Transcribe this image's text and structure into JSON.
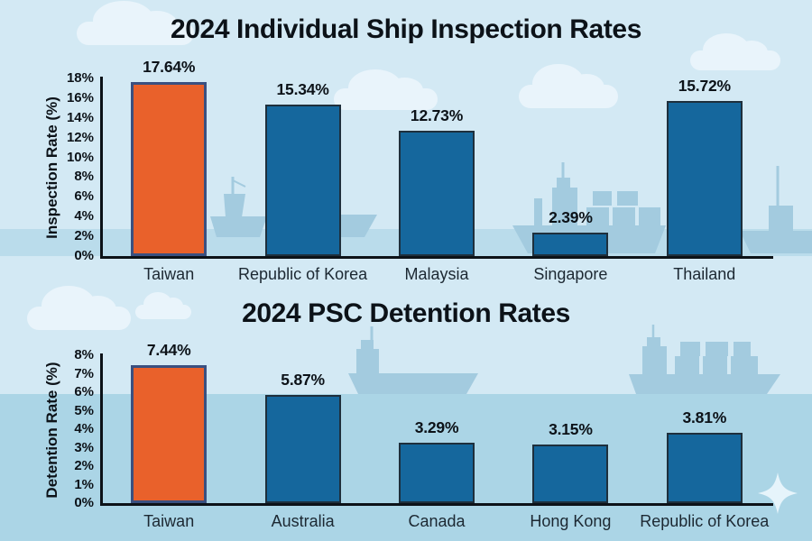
{
  "colors": {
    "sky": "#D3E9F4",
    "water_top": "#BADCEB",
    "water_bottom": "#ABD5E6",
    "bar_blue": "#15679D",
    "bar_orange": "#E9612B",
    "bar_border": "#1E2F3C",
    "hl_border": "#3A5080",
    "ink": "#0C1218",
    "ink_soft": "#1C2832",
    "ship": "#A3CBDF",
    "cloud": "#E9F4FB",
    "sparkle": "#E6F4FB"
  },
  "chart_data": [
    {
      "type": "bar",
      "title": "2024 Individual Ship Inspection Rates",
      "ylabel": "Inspection Rate (%)",
      "xlabel": "",
      "categories": [
        "Taiwan",
        "Republic of Korea",
        "Malaysia",
        "Singapore",
        "Thailand"
      ],
      "values": [
        17.64,
        15.34,
        12.73,
        2.39,
        15.72
      ],
      "bar_labels": [
        "17.64%",
        "15.34%",
        "12.73%",
        "2.39%",
        "15.72%"
      ],
      "highlight_index": 0,
      "highlight_category": "Taiwan",
      "ylim": [
        0,
        18
      ],
      "ytick_step": 2,
      "ytick_labels": [
        "0%",
        "2%",
        "4%",
        "6%",
        "8%",
        "10%",
        "12%",
        "14%",
        "16%",
        "18%"
      ],
      "grid": false,
      "legend": null
    },
    {
      "type": "bar",
      "title": "2024 PSC Detention Rates",
      "ylabel": "Detention Rate (%)",
      "xlabel": "",
      "categories": [
        "Taiwan",
        "Australia",
        "Canada",
        "Hong Kong",
        "Republic of Korea"
      ],
      "values": [
        7.44,
        5.87,
        3.29,
        3.15,
        3.81
      ],
      "bar_labels": [
        "7.44%",
        "5.87%",
        "3.29%",
        "3.15%",
        "3.81%"
      ],
      "highlight_index": 0,
      "highlight_category": "Taiwan",
      "ylim": [
        0,
        8
      ],
      "ytick_step": 1,
      "ytick_labels": [
        "0%",
        "1%",
        "2%",
        "3%",
        "4%",
        "5%",
        "6%",
        "7%",
        "8%"
      ],
      "grid": false,
      "legend": null
    }
  ]
}
